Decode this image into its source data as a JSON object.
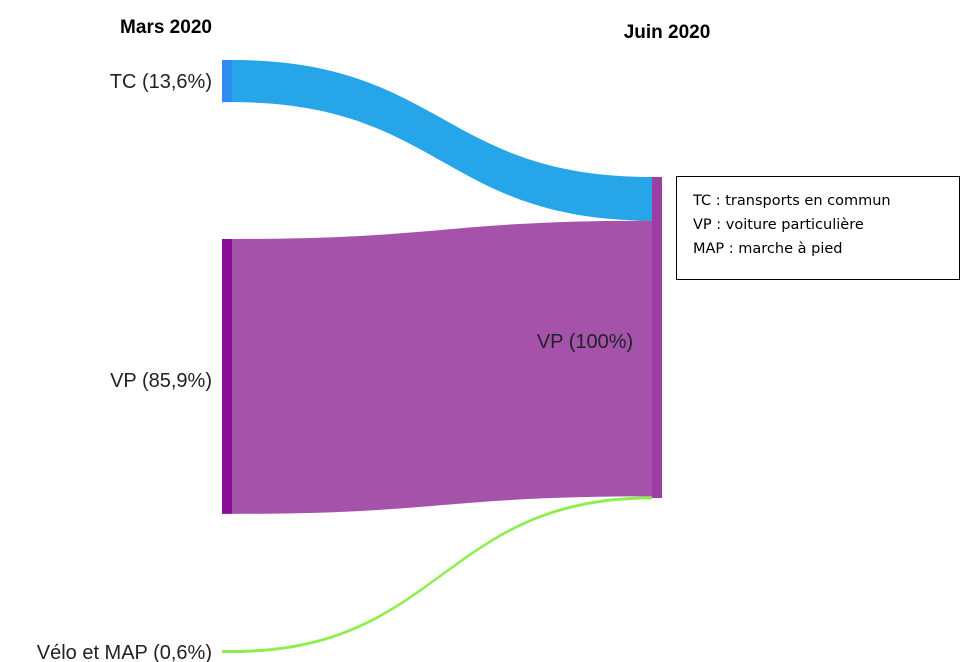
{
  "chart_data": {
    "type": "sankey",
    "columns": [
      "Mars 2020",
      "Juin 2020"
    ],
    "sources": [
      {
        "id": "tc",
        "label": "TC (13,6%)",
        "value": 13.6,
        "color": "#2f8cf0",
        "flow_color": "#1aa0e8"
      },
      {
        "id": "vp",
        "label": "VP (85,9%)",
        "value": 85.9,
        "color": "#8a0f96",
        "flow_color": "#a04aa5"
      },
      {
        "id": "velo",
        "label": "Vélo et MAP (0,6%)",
        "value": 0.6,
        "color": "#8df04a",
        "flow_color": "#8df04a"
      }
    ],
    "target": {
      "id": "vp_juin",
      "label": "VP (100%)",
      "value": 100,
      "color": "#9b3fa3"
    },
    "flows": [
      {
        "from": "tc",
        "to": "vp_juin",
        "value": 13.6
      },
      {
        "from": "vp",
        "to": "vp_juin",
        "value": 85.9
      },
      {
        "from": "velo",
        "to": "vp_juin",
        "value": 0.6
      }
    ]
  },
  "legend": {
    "lines": [
      "TC : transports en commun",
      "VP : voiture particulière",
      "MAP : marche à pied"
    ]
  }
}
